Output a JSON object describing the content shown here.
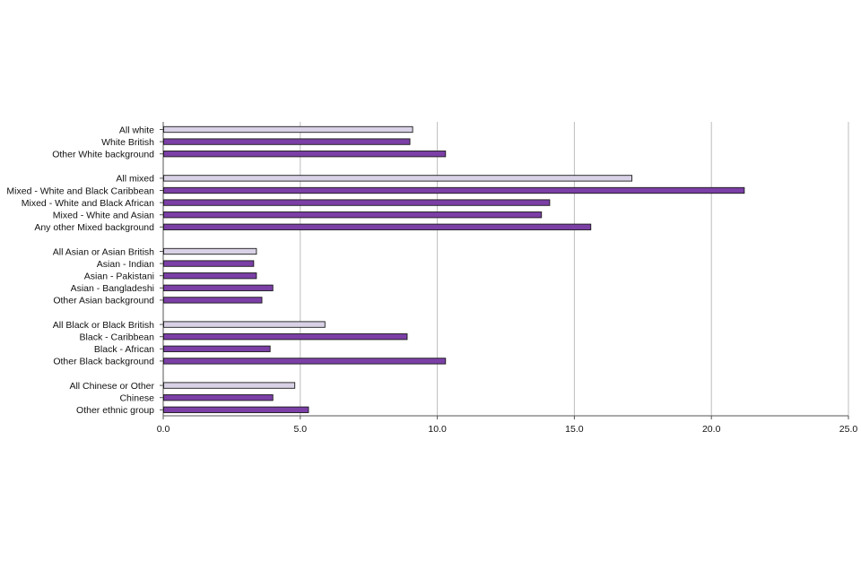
{
  "chart_data": {
    "type": "bar",
    "orientation": "horizontal",
    "title": "",
    "xlabel": "",
    "ylabel": "",
    "xlim": [
      0,
      25
    ],
    "x_ticks": [
      "0.0",
      "5.0",
      "10.0",
      "15.0",
      "20.0",
      "25.0"
    ],
    "grid": "vertical",
    "legend": "none",
    "colors": {
      "group_total": "#d9d2e6",
      "subgroup": "#7b3fa6",
      "outline": "#1a1a1a",
      "grid": "#bdbdbd"
    },
    "groups": [
      {
        "items": [
          {
            "label": "All white",
            "value": 9.1,
            "total": true
          },
          {
            "label": "White British",
            "value": 9.0,
            "total": false
          },
          {
            "label": "Other White background",
            "value": 10.3,
            "total": false
          }
        ]
      },
      {
        "items": [
          {
            "label": "All mixed",
            "value": 17.1,
            "total": true
          },
          {
            "label": "Mixed - White and Black Caribbean",
            "value": 21.2,
            "total": false
          },
          {
            "label": "Mixed - White and Black African",
            "value": 14.1,
            "total": false
          },
          {
            "label": "Mixed - White and Asian",
            "value": 13.8,
            "total": false
          },
          {
            "label": "Any other Mixed background",
            "value": 15.6,
            "total": false
          }
        ]
      },
      {
        "items": [
          {
            "label": "All Asian or Asian British",
            "value": 3.4,
            "total": true
          },
          {
            "label": "Asian - Indian",
            "value": 3.3,
            "total": false
          },
          {
            "label": "Asian - Pakistani",
            "value": 3.4,
            "total": false
          },
          {
            "label": "Asian - Bangladeshi",
            "value": 4.0,
            "total": false
          },
          {
            "label": "Other Asian background",
            "value": 3.6,
            "total": false
          }
        ]
      },
      {
        "items": [
          {
            "label": "All Black or Black British",
            "value": 5.9,
            "total": true
          },
          {
            "label": "Black - Caribbean",
            "value": 8.9,
            "total": false
          },
          {
            "label": "Black - African",
            "value": 3.9,
            "total": false
          },
          {
            "label": "Other Black background",
            "value": 10.3,
            "total": false
          }
        ]
      },
      {
        "items": [
          {
            "label": "All Chinese or Other",
            "value": 4.8,
            "total": true
          },
          {
            "label": "Chinese",
            "value": 4.0,
            "total": false
          },
          {
            "label": "Other ethnic group",
            "value": 5.3,
            "total": false
          }
        ]
      }
    ]
  }
}
